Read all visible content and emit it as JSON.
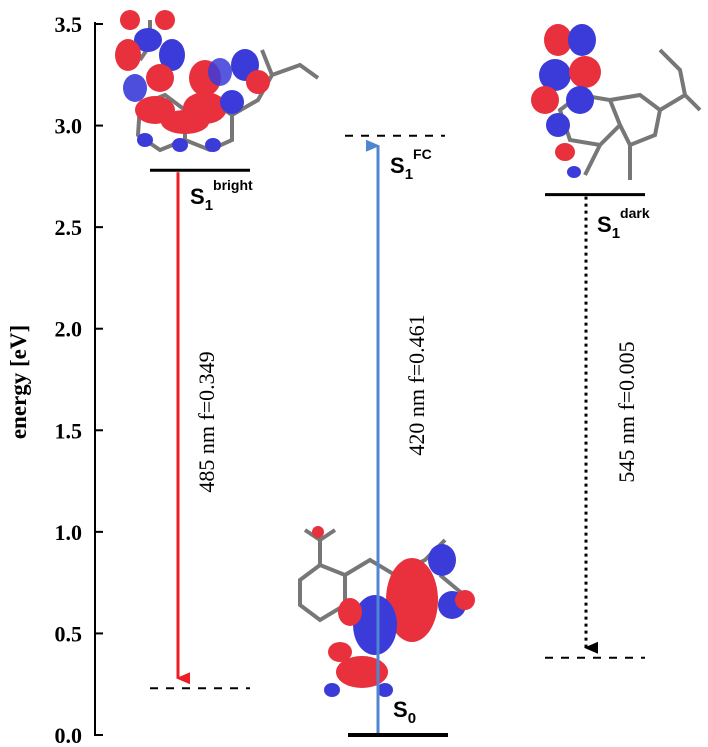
{
  "chart_data": {
    "type": "energy-level-diagram",
    "ylabel": "energy [eV]",
    "ylim": [
      0.0,
      3.5
    ],
    "yticks": [
      "0.0",
      "0.5",
      "1.0",
      "1.5",
      "2.0",
      "2.5",
      "3.0",
      "3.5"
    ],
    "levels": [
      {
        "id": "s1_bright",
        "label": "S",
        "sub": "1",
        "sup": "bright",
        "energy": 2.78,
        "style": "solid"
      },
      {
        "id": "s1_fc",
        "label": "S",
        "sub": "1",
        "sup": "FC",
        "energy": 2.95,
        "style": "dashed"
      },
      {
        "id": "s1_dark",
        "label": "S",
        "sub": "1",
        "sup": "dark",
        "energy": 2.66,
        "style": "solid"
      },
      {
        "id": "s0",
        "label": "S",
        "sub": "0",
        "sup": "",
        "energy": 0.0,
        "style": "solid"
      },
      {
        "id": "bright_ground",
        "label": "",
        "energy": 0.23,
        "style": "dashed"
      },
      {
        "id": "dark_ground",
        "label": "",
        "energy": 0.38,
        "style": "dashed"
      }
    ],
    "transitions": [
      {
        "id": "emission_bright",
        "label": "485 nm  f=0.349",
        "from": 2.78,
        "to": 0.23,
        "color": "#ee1c25",
        "style": "solid"
      },
      {
        "id": "absorption_fc",
        "label": "420 nm  f=0.461",
        "from": 0.0,
        "to": 2.95,
        "color": "#4f86d1",
        "style": "solid"
      },
      {
        "id": "emission_dark",
        "label": "545 nm  f=0.005",
        "from": 2.66,
        "to": 0.38,
        "color": "#000000",
        "style": "dotted"
      }
    ],
    "orbital_colors": {
      "positive": "#e8313d",
      "negative": "#3b3bd9"
    }
  }
}
